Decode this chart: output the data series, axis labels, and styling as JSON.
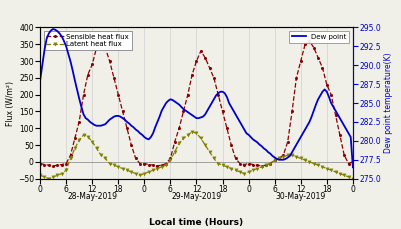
{
  "title": "",
  "xlabel": "Local time (Hours)",
  "ylabel_left": "Flux (W/m²)",
  "ylabel_right": "Dew point temperature(K)",
  "xlim": [
    0,
    72
  ],
  "ylim_left": [
    -50,
    400
  ],
  "ylim_right": [
    275.0,
    295.0
  ],
  "xtick_positions": [
    0,
    6,
    12,
    18,
    24,
    30,
    36,
    42,
    48,
    54,
    60,
    66,
    72
  ],
  "xtick_labels": [
    "0",
    "6",
    "12",
    "18",
    "0",
    "6",
    "12",
    "18",
    "0",
    "6",
    "12",
    "18",
    "0"
  ],
  "date_labels": [
    {
      "x": 12,
      "label": "28-May-2019"
    },
    {
      "x": 36,
      "label": "29-May-2019"
    },
    {
      "x": 60,
      "label": "30-May-2019"
    }
  ],
  "ytick_left": [
    -50,
    0,
    50,
    100,
    150,
    200,
    250,
    300,
    350,
    400
  ],
  "ytick_right": [
    275.0,
    277.5,
    280.0,
    282.5,
    285.0,
    287.5,
    290.0,
    292.5,
    295.0
  ],
  "grid_color": "#d0d0d0",
  "sensible_color": "#8b0000",
  "latent_color": "#808000",
  "dew_color": "#0000cc",
  "bg_color": "#f0f0e8",
  "sensible_x": [
    0,
    1,
    2,
    3,
    4,
    5,
    6,
    7,
    8,
    9,
    10,
    11,
    12,
    13,
    14,
    15,
    16,
    17,
    18,
    19,
    20,
    21,
    22,
    23,
    24,
    25,
    26,
    27,
    28,
    29,
    30,
    31,
    32,
    33,
    34,
    35,
    36,
    37,
    38,
    39,
    40,
    41,
    42,
    43,
    44,
    45,
    46,
    47,
    48,
    49,
    50,
    51,
    52,
    53,
    54,
    55,
    56,
    57,
    58,
    59,
    60,
    61,
    62,
    63,
    64,
    65,
    66,
    67,
    68,
    69,
    70,
    71,
    72
  ],
  "sensible_y": [
    -5,
    -8,
    -10,
    -12,
    -10,
    -8,
    -5,
    20,
    70,
    120,
    200,
    260,
    290,
    340,
    355,
    340,
    300,
    250,
    200,
    150,
    100,
    50,
    10,
    -5,
    -5,
    -8,
    -10,
    -12,
    -10,
    -5,
    10,
    60,
    100,
    150,
    200,
    260,
    300,
    330,
    310,
    280,
    250,
    200,
    150,
    100,
    50,
    10,
    -5,
    -8,
    -5,
    -8,
    -10,
    -12,
    -10,
    -5,
    5,
    10,
    20,
    60,
    150,
    250,
    300,
    350,
    360,
    340,
    310,
    280,
    230,
    200,
    140,
    80,
    20,
    -5,
    0
  ],
  "latent_x": [
    0,
    1,
    2,
    3,
    4,
    5,
    6,
    7,
    8,
    9,
    10,
    11,
    12,
    13,
    14,
    15,
    16,
    17,
    18,
    19,
    20,
    21,
    22,
    23,
    24,
    25,
    26,
    27,
    28,
    29,
    30,
    31,
    32,
    33,
    34,
    35,
    36,
    37,
    38,
    39,
    40,
    41,
    42,
    43,
    44,
    45,
    46,
    47,
    48,
    49,
    50,
    51,
    52,
    53,
    54,
    55,
    56,
    57,
    58,
    59,
    60,
    61,
    62,
    63,
    64,
    65,
    66,
    67,
    68,
    69,
    70,
    71,
    72
  ],
  "latent_y": [
    -40,
    -45,
    -50,
    -45,
    -40,
    -35,
    -25,
    10,
    40,
    65,
    80,
    75,
    60,
    40,
    20,
    10,
    -5,
    -10,
    -15,
    -20,
    -25,
    -30,
    -35,
    -40,
    -35,
    -30,
    -25,
    -20,
    -15,
    -10,
    5,
    30,
    55,
    70,
    80,
    90,
    85,
    70,
    50,
    30,
    10,
    -5,
    -10,
    -15,
    -20,
    -25,
    -30,
    -35,
    -30,
    -25,
    -20,
    -15,
    -10,
    -5,
    5,
    10,
    15,
    20,
    20,
    15,
    10,
    5,
    0,
    -5,
    -10,
    -15,
    -20,
    -25,
    -30,
    -35,
    -40,
    -45,
    -50
  ],
  "dew_x": [
    0,
    0.5,
    1,
    1.5,
    2,
    2.5,
    3,
    3.5,
    4,
    4.5,
    5,
    5.5,
    6,
    6.5,
    7,
    7.5,
    8,
    8.5,
    9,
    9.5,
    10,
    10.5,
    11,
    11.5,
    12,
    12.5,
    13,
    13.5,
    14,
    14.5,
    15,
    15.5,
    16,
    16.5,
    17,
    17.5,
    18,
    18.5,
    19,
    19.5,
    20,
    20.5,
    21,
    21.5,
    22,
    22.5,
    23,
    23.5,
    24,
    24.5,
    25,
    25.5,
    26,
    26.5,
    27,
    27.5,
    28,
    28.5,
    29,
    29.5,
    30,
    30.5,
    31,
    31.5,
    32,
    32.5,
    33,
    33.5,
    34,
    34.5,
    35,
    35.5,
    36,
    36.5,
    37,
    37.5,
    38,
    38.5,
    39,
    39.5,
    40,
    40.5,
    41,
    41.5,
    42,
    42.5,
    43,
    43.5,
    44,
    44.5,
    45,
    45.5,
    46,
    46.5,
    47,
    47.5,
    48,
    48.5,
    49,
    49.5,
    50,
    50.5,
    51,
    51.5,
    52,
    52.5,
    53,
    53.5,
    54,
    54.5,
    55,
    55.5,
    56,
    56.5,
    57,
    57.5,
    58,
    58.5,
    59,
    59.5,
    60,
    60.5,
    61,
    61.5,
    62,
    62.5,
    63,
    63.5,
    64,
    64.5,
    65,
    65.5,
    66,
    66.5,
    67,
    67.5,
    68,
    68.5,
    69,
    69.5,
    70,
    70.5,
    71,
    71.5,
    72
  ],
  "dew_y": [
    288,
    290,
    292,
    293.5,
    294.2,
    294.6,
    294.8,
    294.7,
    294.5,
    294.2,
    293.8,
    293.2,
    292.5,
    291.5,
    290.5,
    289.3,
    288,
    286.8,
    285.6,
    284.5,
    283.5,
    283,
    282.8,
    282.5,
    282.3,
    282.1,
    282,
    282,
    282,
    282.1,
    282.2,
    282.5,
    282.8,
    283.0,
    283.2,
    283.3,
    283.3,
    283.2,
    283.0,
    282.8,
    282.5,
    282.3,
    282.0,
    281.8,
    281.5,
    281.3,
    281.0,
    280.8,
    280.5,
    280.3,
    280.2,
    280.5,
    281.0,
    281.8,
    282.5,
    283.2,
    284.0,
    284.5,
    285.0,
    285.3,
    285.5,
    285.4,
    285.2,
    285.0,
    284.8,
    284.5,
    284.2,
    284.0,
    283.8,
    283.6,
    283.4,
    283.2,
    283.0,
    283.0,
    283.1,
    283.2,
    283.5,
    284.0,
    284.5,
    285.0,
    285.5,
    286.0,
    286.3,
    286.5,
    286.5,
    286.3,
    285.8,
    285.0,
    284.5,
    284.0,
    283.5,
    283.0,
    282.5,
    282.0,
    281.5,
    281.0,
    280.8,
    280.5,
    280.2,
    280.0,
    279.8,
    279.5,
    279.3,
    279.0,
    278.8,
    278.5,
    278.3,
    278.0,
    277.8,
    277.6,
    277.5,
    277.5,
    277.5,
    277.6,
    277.8,
    278.0,
    278.5,
    279.0,
    279.5,
    280.0,
    280.5,
    281.0,
    281.5,
    282.0,
    282.5,
    283.2,
    284.0,
    284.8,
    285.5,
    286.0,
    286.5,
    286.8,
    286.5,
    285.8,
    285.0,
    284.5,
    284.0,
    283.5,
    283.0,
    282.5,
    282.0,
    281.5,
    281.0,
    280.5,
    276.5
  ]
}
